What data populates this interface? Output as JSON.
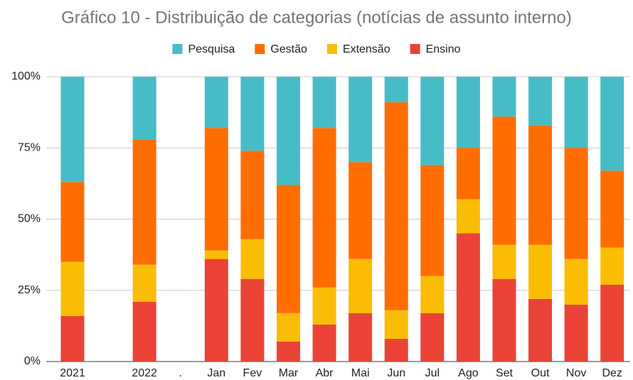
{
  "chart_data": {
    "type": "stacked_bar",
    "title": "Gráfico 10 - Distribuição de categorias (notícias de assunto interno)",
    "categories": [
      "2021",
      null,
      "2022",
      ".",
      "Jan",
      "Fev",
      "Mar",
      "Abr",
      "Mai",
      "Jun",
      "Jul",
      "Ago",
      "Set",
      "Out",
      "Nov",
      "Dez"
    ],
    "series": [
      {
        "name": "Pesquisa",
        "color": "#46bdc6",
        "values": [
          37,
          null,
          22,
          null,
          18,
          26,
          38,
          18,
          30,
          9,
          31,
          25,
          14,
          17,
          25,
          33
        ]
      },
      {
        "name": "Gestão",
        "color": "#ff6d01",
        "values": [
          28,
          null,
          44,
          null,
          43,
          31,
          45,
          56,
          34,
          73,
          39,
          18,
          45,
          42,
          39,
          27
        ]
      },
      {
        "name": "Extensão",
        "color": "#fbbc04",
        "values": [
          19,
          null,
          13,
          null,
          3,
          14,
          10,
          13,
          19,
          10,
          13,
          12,
          12,
          19,
          16,
          13
        ]
      },
      {
        "name": "Ensino",
        "color": "#ea4335",
        "values": [
          16,
          null,
          21,
          null,
          36,
          29,
          7,
          13,
          17,
          8,
          17,
          45,
          29,
          22,
          20,
          27
        ]
      }
    ],
    "ylim": [
      0,
      100
    ],
    "yticks": [
      {
        "value": 0,
        "label": "0%"
      },
      {
        "value": 25,
        "label": "25%"
      },
      {
        "value": 50,
        "label": "50%"
      },
      {
        "value": 75,
        "label": "75%"
      },
      {
        "value": 100,
        "label": "100%"
      }
    ],
    "grid": true,
    "legend": "top"
  }
}
